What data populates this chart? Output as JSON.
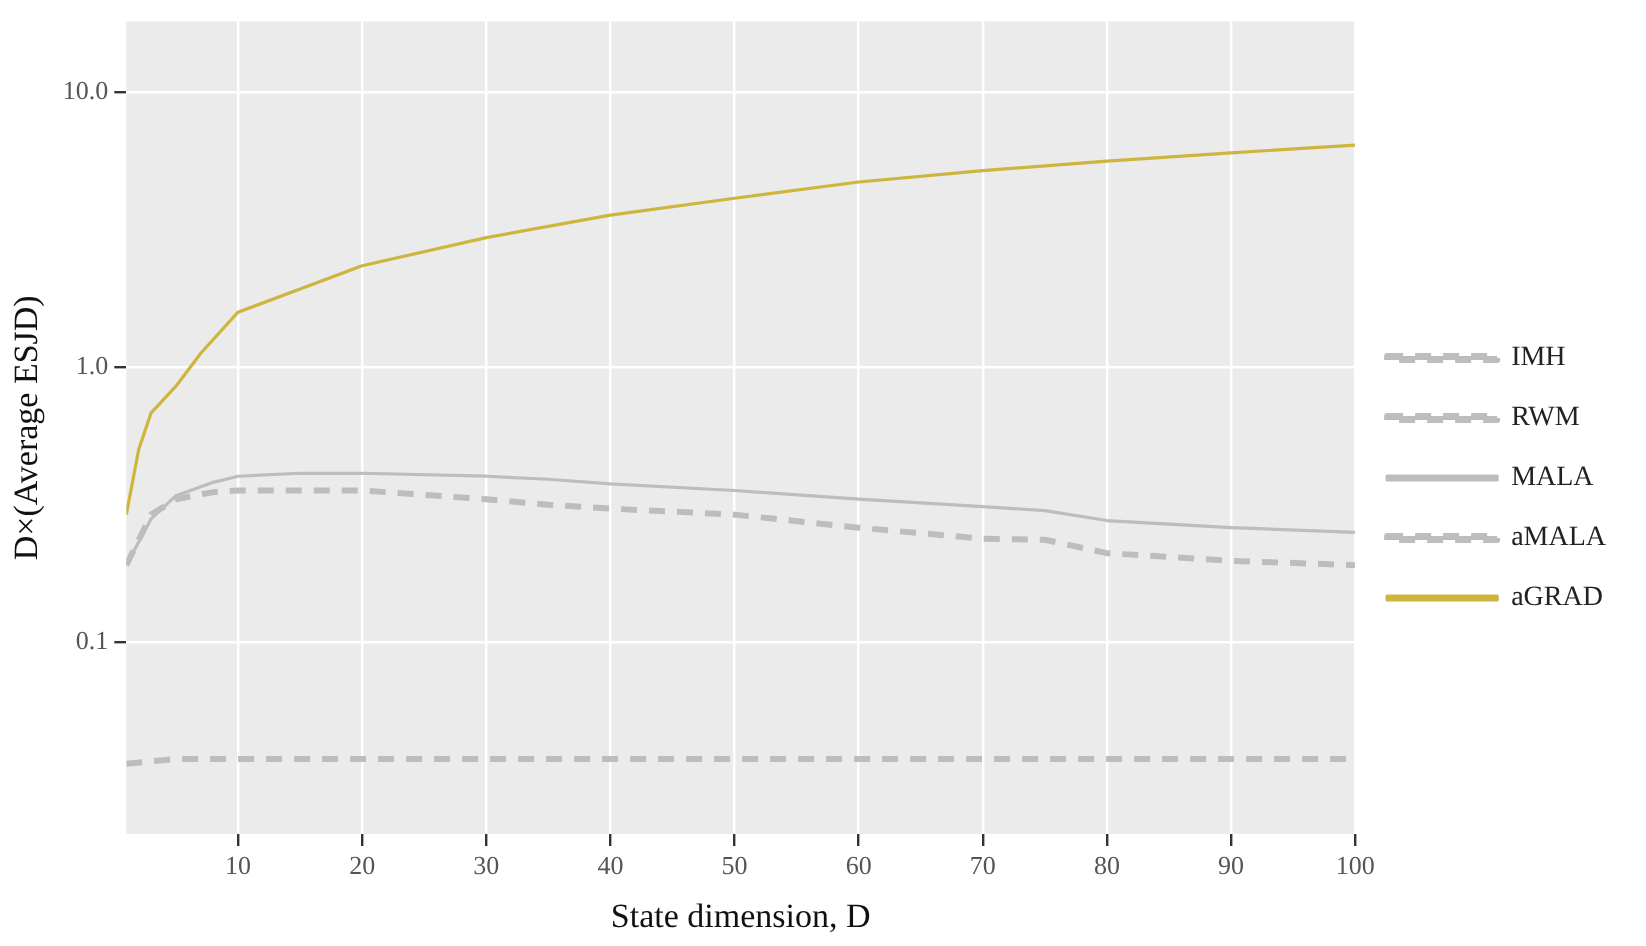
{
  "chart_data": {
    "type": "line",
    "xlabel": "State dimension, D",
    "ylabel": "D×(Average ESJD)",
    "log": "y",
    "xlim": [
      1,
      100
    ],
    "xticks": [
      10,
      20,
      30,
      40,
      50,
      60,
      70,
      80,
      90,
      100
    ],
    "ylim": [
      0.02,
      18
    ],
    "yticks": [
      {
        "value": 0.1,
        "label": "0.1"
      },
      {
        "value": 1,
        "label": "1.0"
      },
      {
        "value": 10,
        "label": "10.0"
      }
    ],
    "grid": true,
    "legend": "right",
    "marker": "none",
    "x": [
      1,
      3,
      5,
      8,
      10,
      15,
      20,
      30,
      35,
      40,
      50,
      60,
      70,
      75,
      80,
      90,
      100
    ],
    "series": [
      {
        "name": "IMH",
        "color": "#bdbdbd",
        "line_style": "dashed",
        "x": [
          1,
          5,
          10,
          20,
          30,
          40,
          50,
          60,
          70,
          80,
          90,
          100
        ],
        "values": [
          0.036,
          0.0375,
          0.0375,
          0.0375,
          0.0375,
          0.0375,
          0.0375,
          0.0375,
          0.0375,
          0.0375,
          0.0375,
          0.0375
        ]
      },
      {
        "name": "RWM",
        "color": "#bdbdbd",
        "line_style": "dashed",
        "values": [
          0.19,
          0.29,
          0.33,
          0.35,
          0.355,
          0.355,
          0.355,
          0.33,
          0.315,
          0.305,
          0.29,
          0.26,
          0.237,
          0.235,
          0.21,
          0.197,
          0.19
        ]
      },
      {
        "name": "MALA",
        "color": "#bdbdbd",
        "line_style": "solid",
        "values": [
          0.19,
          0.28,
          0.34,
          0.38,
          0.4,
          0.41,
          0.41,
          0.4,
          0.39,
          0.375,
          0.355,
          0.33,
          0.31,
          0.3,
          0.276,
          0.26,
          0.25
        ]
      },
      {
        "name": "aMALA",
        "color": "#bdbdbd",
        "line_style": "dashed",
        "values": [
          null,
          null,
          null,
          null,
          null,
          null,
          null,
          null,
          null,
          null,
          null,
          null,
          null,
          null,
          null,
          null,
          null
        ]
      },
      {
        "name": "aGRAD",
        "color": "#cdb53e",
        "line_style": "solid",
        "x": [
          1,
          2,
          3,
          5,
          7,
          10,
          20,
          30,
          40,
          50,
          60,
          70,
          80,
          90,
          100
        ],
        "values": [
          0.29,
          0.5,
          0.68,
          0.85,
          1.12,
          1.58,
          2.33,
          2.95,
          3.56,
          4.1,
          4.7,
          5.17,
          5.6,
          6.0,
          6.4
        ]
      }
    ]
  }
}
